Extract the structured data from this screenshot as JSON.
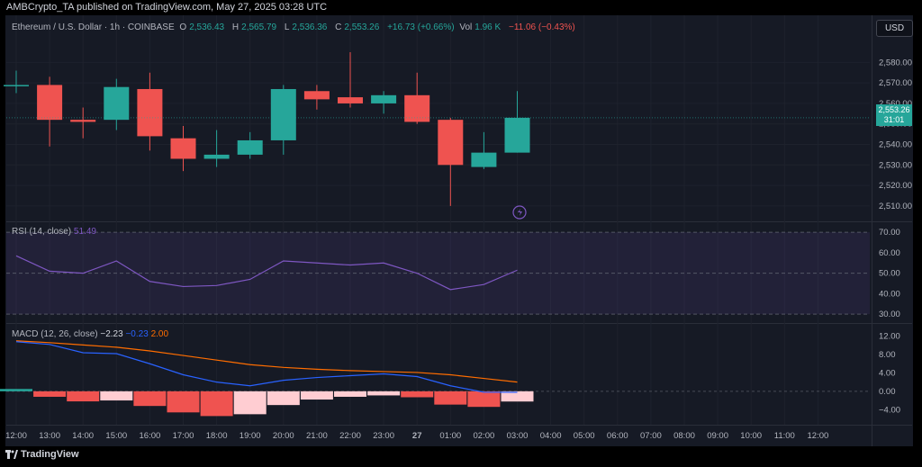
{
  "attribution": "AMBCrypto_TA published on TradingView.com, May 27, 2025 03:28 UTC",
  "header": {
    "symbol": "Ethereum / U.S. Dollar · 1h · COINBASE",
    "open_label": "O",
    "open": "2,536.43",
    "high_label": "H",
    "high": "2,565.79",
    "low_label": "L",
    "low": "2,536.36",
    "close_label": "C",
    "close": "2,553.26",
    "change": "+16.73 (+0.66%)",
    "vol_label": "Vol",
    "vol": "1.96 K",
    "vol_change": "−11.06 (−0.43%)"
  },
  "currency_button": "USD",
  "price_tag": {
    "price": "2,553.26",
    "countdown": "31:01"
  },
  "rsi_label": {
    "name": "RSI (14, close)",
    "value": "51.49"
  },
  "macd_label": {
    "name": "MACD (12, 26, close)",
    "hist": "−2.23",
    "macd": "−0.23",
    "signal": "2.00"
  },
  "logo": "TradingView",
  "colors": {
    "up": "#26a69a",
    "down": "#ef5350",
    "rsi": "#7e57c2",
    "macd": "#2962ff",
    "signal": "#ff6d00",
    "hist_pos_light": "#b2dfdb",
    "hist_neg_light": "#ffcdd2",
    "background": "#161a25"
  },
  "chart_data": [
    {
      "type": "candlestick",
      "title": "Ethereum / U.S. Dollar · 1h · COINBASE",
      "x": [
        "12:00",
        "13:00",
        "14:00",
        "15:00",
        "16:00",
        "17:00",
        "18:00",
        "19:00",
        "20:00",
        "21:00",
        "22:00",
        "23:00",
        "27",
        "01:00",
        "02:00",
        "03:00"
      ],
      "x_ticks": [
        "12:00",
        "13:00",
        "14:00",
        "15:00",
        "16:00",
        "17:00",
        "18:00",
        "19:00",
        "20:00",
        "21:00",
        "22:00",
        "23:00",
        "27",
        "01:00",
        "02:00",
        "03:00",
        "04:00",
        "05:00",
        "06:00",
        "07:00",
        "08:00",
        "09:00",
        "10:00",
        "11:00",
        "12:00"
      ],
      "ohlc": [
        {
          "o": 2569,
          "h": 2576,
          "l": 2565,
          "c": 2569
        },
        {
          "o": 2569,
          "h": 2573,
          "l": 2539,
          "c": 2552
        },
        {
          "o": 2552,
          "h": 2558,
          "l": 2543,
          "c": 2551
        },
        {
          "o": 2552,
          "h": 2572,
          "l": 2547,
          "c": 2568
        },
        {
          "o": 2567,
          "h": 2575,
          "l": 2537,
          "c": 2544
        },
        {
          "o": 2543,
          "h": 2549,
          "l": 2527,
          "c": 2533
        },
        {
          "o": 2533,
          "h": 2547,
          "l": 2529,
          "c": 2535
        },
        {
          "o": 2535,
          "h": 2546,
          "l": 2533,
          "c": 2542
        },
        {
          "o": 2542,
          "h": 2569,
          "l": 2535,
          "c": 2567
        },
        {
          "o": 2566,
          "h": 2569,
          "l": 2557,
          "c": 2562
        },
        {
          "o": 2563,
          "h": 2585,
          "l": 2558,
          "c": 2560
        },
        {
          "o": 2560,
          "h": 2566,
          "l": 2555,
          "c": 2564
        },
        {
          "o": 2564,
          "h": 2575,
          "l": 2550,
          "c": 2551
        },
        {
          "o": 2552,
          "h": 2553,
          "l": 2510,
          "c": 2530
        },
        {
          "o": 2529,
          "h": 2546,
          "l": 2528,
          "c": 2536
        },
        {
          "o": 2536,
          "h": 2566,
          "l": 2536,
          "c": 2553
        }
      ],
      "y_ticks": [
        "2,580.00",
        "2,570.00",
        "2,560.00",
        "2,550.00",
        "2,540.00",
        "2,530.00",
        "2,520.00",
        "2,510.00"
      ],
      "ylim": [
        2506,
        2592
      ]
    },
    {
      "type": "line",
      "title": "RSI (14, close)",
      "series": [
        {
          "name": "RSI",
          "values": [
            58.5,
            51,
            50,
            56,
            46,
            43.5,
            44,
            47,
            56,
            55,
            54,
            55,
            50,
            42,
            44.5,
            51.49
          ]
        }
      ],
      "bands": [
        70,
        50,
        30
      ],
      "y_ticks": [
        "70.00",
        "60.00",
        "50.00",
        "40.00",
        "30.00"
      ],
      "ylim": [
        27,
        74
      ]
    },
    {
      "type": "bar+line",
      "title": "MACD (12, 26, close)",
      "histogram": [
        0.5,
        -1.2,
        -2.2,
        -2.0,
        -3.2,
        -4.6,
        -5.4,
        -5.0,
        -3.0,
        -1.8,
        -1.2,
        -0.9,
        -1.3,
        -2.9,
        -3.4,
        -2.23
      ],
      "series": [
        {
          "name": "MACD",
          "values": [
            10.8,
            10.2,
            8.4,
            8.2,
            6.0,
            3.6,
            2.0,
            1.2,
            2.4,
            3.0,
            3.4,
            3.8,
            3.2,
            1.2,
            -0.2,
            -0.23
          ]
        },
        {
          "name": "Signal",
          "values": [
            11.0,
            10.6,
            10.1,
            9.6,
            8.8,
            7.8,
            6.8,
            5.8,
            5.2,
            4.8,
            4.5,
            4.3,
            4.1,
            3.6,
            2.8,
            2.0
          ]
        }
      ],
      "y_ticks": [
        "12.00",
        "8.00",
        "4.00",
        "0.00",
        "−4.00"
      ],
      "ylim": [
        -6.5,
        13.5
      ]
    }
  ]
}
